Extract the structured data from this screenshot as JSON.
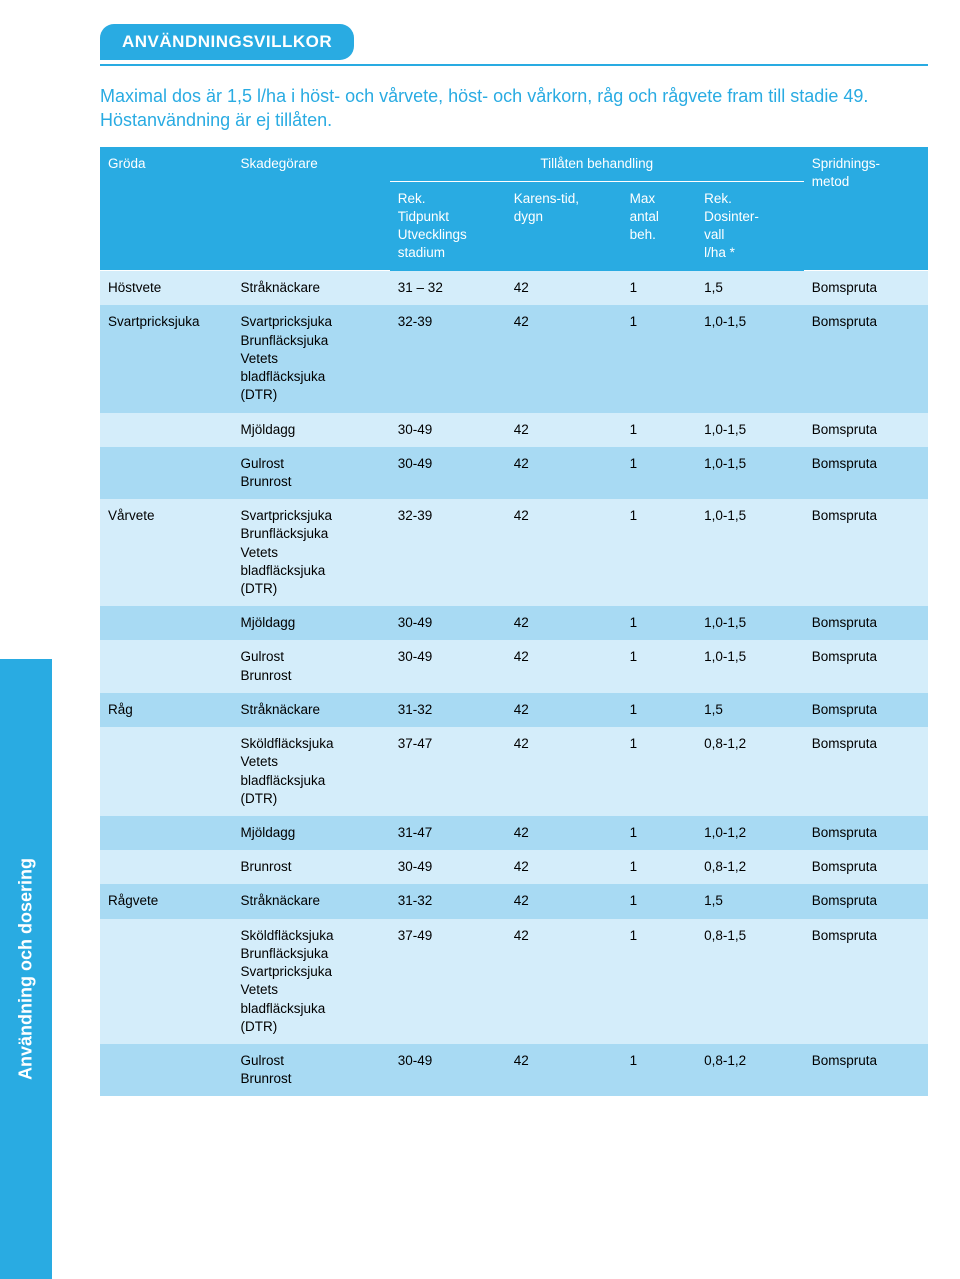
{
  "colors": {
    "accent": "#29abe2",
    "band_light": "#d4edfa",
    "band_dark": "#a8daf3",
    "white": "#ffffff"
  },
  "typography": {
    "family": "Arial, Helvetica, sans-serif",
    "body_size_pt": 10,
    "intro_size_pt": 13,
    "header_size_pt": 13
  },
  "side_tab_label": "Användning och dosering",
  "header_title": "ANVÄNDNINGSVILLKOR",
  "intro_text": "Maximal dos är 1,5 l/ha i höst- och vårvete, höst- och vårkorn, råg och rågvete fram till stadie 49. Höstanvändning är ej tillåten.",
  "table": {
    "columns": [
      "Gröda",
      "Skadegörare",
      "Rek. Tidpunkt Utvecklings stadium",
      "Karens-tid, dygn",
      "Max antal beh.",
      "Rek. Dosinter- vall l/ha *",
      "Spridnings- metod"
    ],
    "header": {
      "top": {
        "groda": "Gröda",
        "skad": "Skadegörare",
        "tillaten": "Tillåten behandling",
        "sprid": "Spridnings-\nmetod"
      },
      "sub": {
        "rek": "Rek.\nTidpunkt\nUtvecklings\nstadium",
        "karens": "Karens-tid,\ndygn",
        "max": "Max\nantal\nbeh.",
        "dos": "Rek.\nDosinter-\nvall\nl/ha *"
      }
    },
    "rows": [
      {
        "band": "light",
        "groda": "Höstvete",
        "skad": "Stråknäckare",
        "rek": "31 – 32",
        "karens": "42",
        "max": "1",
        "dos": "1,5",
        "sprid": "Bomspruta"
      },
      {
        "band": "dark",
        "groda": "Svartpricksjuka",
        "skad": "Svartpricksjuka\nBrunfläcksjuka\nVetets\nbladfläcksjuka\n(DTR)",
        "rek": "32-39",
        "karens": "42",
        "max": "1",
        "dos": "1,0-1,5",
        "sprid": "Bomspruta"
      },
      {
        "band": "light",
        "groda": "",
        "skad": "Mjöldagg",
        "rek": "30-49",
        "karens": "42",
        "max": "1",
        "dos": "1,0-1,5",
        "sprid": "Bomspruta"
      },
      {
        "band": "dark",
        "groda": "",
        "skad": "Gulrost\nBrunrost",
        "rek": "30-49",
        "karens": "42",
        "max": "1",
        "dos": "1,0-1,5",
        "sprid": "Bomspruta"
      },
      {
        "band": "light",
        "groda": "Vårvete",
        "skad": "Svartpricksjuka\nBrunfläcksjuka\nVetets\nbladfläcksjuka\n(DTR)",
        "rek": "32-39",
        "karens": "42",
        "max": "1",
        "dos": "1,0-1,5",
        "sprid": "Bomspruta"
      },
      {
        "band": "dark",
        "groda": "",
        "skad": "Mjöldagg",
        "rek": "30-49",
        "karens": "42",
        "max": "1",
        "dos": "1,0-1,5",
        "sprid": "Bomspruta"
      },
      {
        "band": "light",
        "groda": "",
        "skad": "Gulrost\nBrunrost",
        "rek": "30-49",
        "karens": "42",
        "max": "1",
        "dos": "1,0-1,5",
        "sprid": "Bomspruta"
      },
      {
        "band": "dark",
        "groda": "Råg",
        "skad": "Stråknäckare",
        "rek": "31-32",
        "karens": "42",
        "max": "1",
        "dos": "1,5",
        "sprid": "Bomspruta"
      },
      {
        "band": "light",
        "groda": "",
        "skad": "Sköldfläcksjuka\nVetets\nbladfläcksjuka\n(DTR)",
        "rek": "37-47",
        "karens": "42",
        "max": "1",
        "dos": "0,8-1,2",
        "sprid": "Bomspruta"
      },
      {
        "band": "dark",
        "groda": "",
        "skad": "Mjöldagg",
        "rek": "31-47",
        "karens": "42",
        "max": "1",
        "dos": "1,0-1,2",
        "sprid": "Bomspruta"
      },
      {
        "band": "light",
        "groda": "",
        "skad": "Brunrost",
        "rek": "30-49",
        "karens": "42",
        "max": "1",
        "dos": "0,8-1,2",
        "sprid": "Bomspruta"
      },
      {
        "band": "dark",
        "groda": "Rågvete",
        "skad": "Stråknäckare",
        "rek": "31-32",
        "karens": "42",
        "max": "1",
        "dos": "1,5",
        "sprid": "Bomspruta"
      },
      {
        "band": "light",
        "groda": "",
        "skad": "Sköldfläcksjuka\nBrunfläcksjuka\nSvartpricksjuka\nVetets\nbladfläcksjuka\n(DTR)",
        "rek": "37-49",
        "karens": "42",
        "max": "1",
        "dos": "0,8-1,5",
        "sprid": "Bomspruta"
      },
      {
        "band": "dark",
        "groda": "",
        "skad": "Gulrost\nBrunrost",
        "rek": "30-49",
        "karens": "42",
        "max": "1",
        "dos": "0,8-1,2",
        "sprid": "Bomspruta"
      }
    ]
  }
}
